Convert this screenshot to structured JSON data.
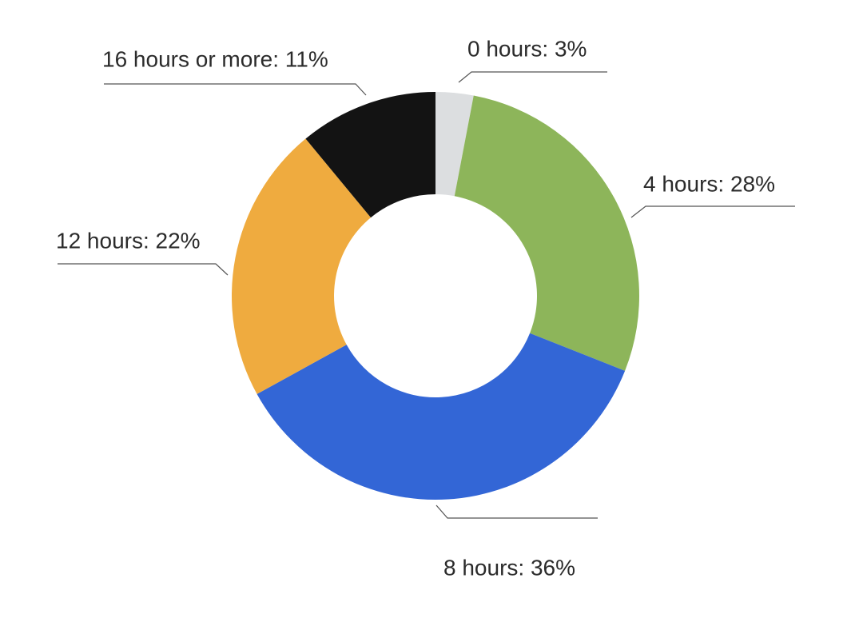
{
  "chart_data": {
    "type": "donut",
    "values": [
      3,
      28,
      36,
      22,
      11
    ],
    "value_labels": [
      "0 hours: 3%",
      "4 hours: 28%",
      "8 hours: 36%",
      "12 hours: 22%",
      "16 hours or more: 11%"
    ],
    "colors": [
      "#dcdee0",
      "#8db55a",
      "#3366d6",
      "#efab3f",
      "#131313"
    ]
  }
}
